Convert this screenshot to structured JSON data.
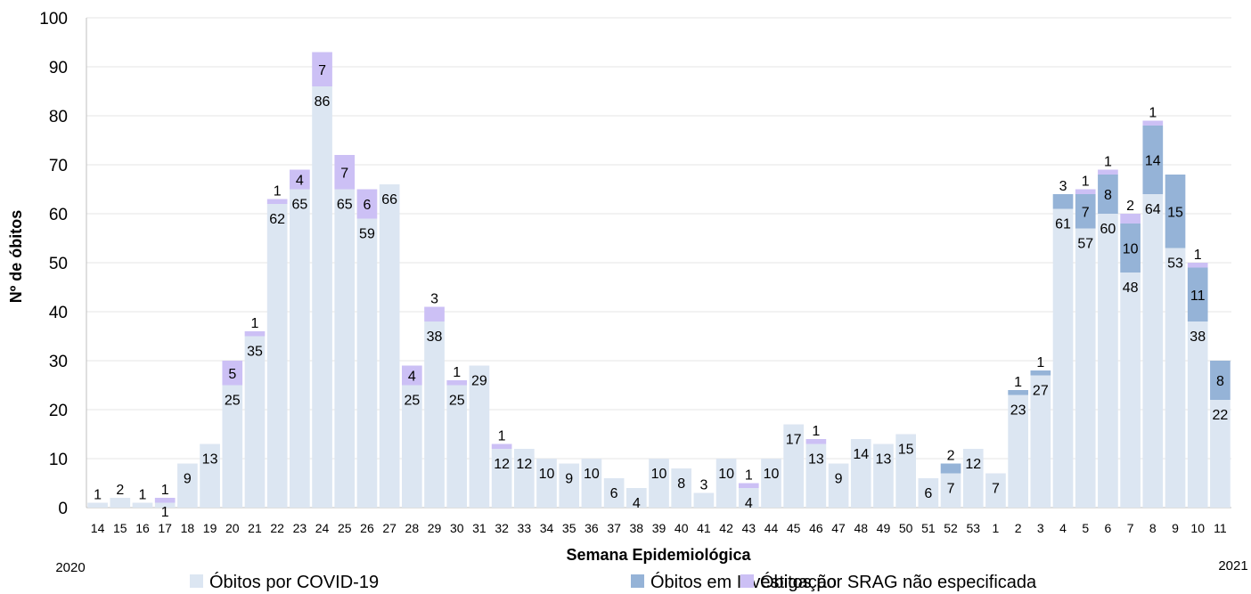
{
  "chart_data": {
    "type": "bar",
    "stacked": true,
    "xlabel": "Semana Epidemiológica",
    "ylabel": "Nº de óbitos",
    "ylim": [
      0,
      100
    ],
    "yticks": [
      0,
      10,
      20,
      30,
      40,
      50,
      60,
      70,
      80,
      90,
      100
    ],
    "grid": true,
    "legend_position": "bottom",
    "years": {
      "start": "2020",
      "end": "2021"
    },
    "categories": [
      "14",
      "15",
      "16",
      "17",
      "18",
      "19",
      "20",
      "21",
      "22",
      "23",
      "24",
      "25",
      "26",
      "27",
      "28",
      "29",
      "30",
      "31",
      "32",
      "33",
      "34",
      "35",
      "36",
      "37",
      "38",
      "39",
      "40",
      "41",
      "42",
      "43",
      "44",
      "45",
      "46",
      "47",
      "48",
      "49",
      "50",
      "51",
      "52",
      "53",
      "1",
      "2",
      "3",
      "4",
      "5",
      "6",
      "7",
      "8",
      "9",
      "10",
      "11"
    ],
    "series": [
      {
        "name": "Óbitos por COVID-19",
        "color": "#dce6f2",
        "values": [
          1,
          2,
          1,
          1,
          9,
          13,
          25,
          35,
          62,
          65,
          86,
          65,
          59,
          66,
          25,
          38,
          25,
          29,
          12,
          12,
          10,
          9,
          10,
          6,
          4,
          10,
          8,
          3,
          10,
          4,
          10,
          17,
          13,
          9,
          14,
          13,
          15,
          6,
          7,
          12,
          7,
          23,
          27,
          61,
          57,
          60,
          48,
          64,
          53,
          38,
          22
        ]
      },
      {
        "name": "Óbitos em Investigação",
        "color": "#95b3d7",
        "values": [
          0,
          0,
          0,
          0,
          0,
          0,
          0,
          0,
          0,
          0,
          0,
          0,
          0,
          0,
          0,
          0,
          0,
          0,
          0,
          0,
          0,
          0,
          0,
          0,
          0,
          0,
          0,
          0,
          0,
          0,
          0,
          0,
          0,
          0,
          0,
          0,
          0,
          0,
          2,
          0,
          0,
          1,
          1,
          3,
          7,
          8,
          10,
          14,
          15,
          11,
          8
        ]
      },
      {
        "name": "Óbitos por SRAG não especificada",
        "color": "#ccc0f5",
        "values": [
          0,
          0,
          0,
          1,
          0,
          0,
          5,
          1,
          1,
          4,
          7,
          7,
          6,
          0,
          4,
          3,
          1,
          0,
          1,
          0,
          0,
          0,
          0,
          0,
          0,
          0,
          0,
          0,
          0,
          1,
          0,
          0,
          1,
          0,
          0,
          0,
          0,
          0,
          0,
          0,
          0,
          0,
          0,
          0,
          1,
          1,
          2,
          1,
          0,
          1,
          0
        ]
      }
    ]
  }
}
